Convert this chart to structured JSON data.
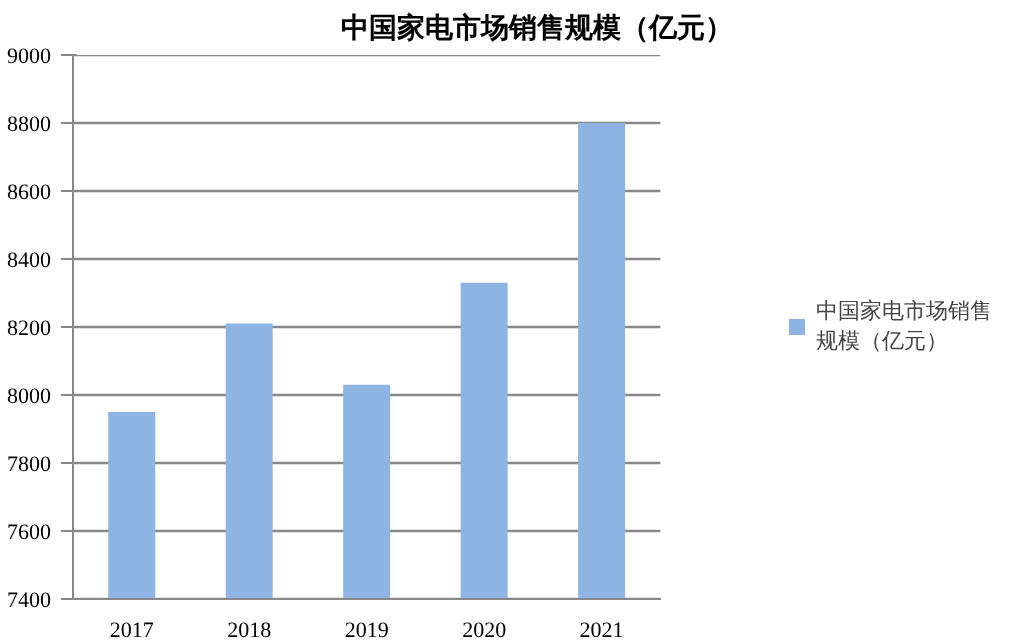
{
  "chart_data": {
    "type": "bar",
    "title": "中国家电市场销售规模（亿元）",
    "categories": [
      "2017",
      "2018",
      "2019",
      "2020",
      "2021"
    ],
    "series": [
      {
        "name": "中国家电市场销售规模（亿元）",
        "color": "#8eb4e3",
        "values": [
          7950,
          8210,
          8030,
          8330,
          8800
        ]
      }
    ],
    "ylim": [
      7400,
      9000
    ],
    "yticks": [
      7400,
      7600,
      7800,
      8000,
      8200,
      8400,
      8600,
      8800,
      9000
    ],
    "grid": "y",
    "legend": "right"
  }
}
